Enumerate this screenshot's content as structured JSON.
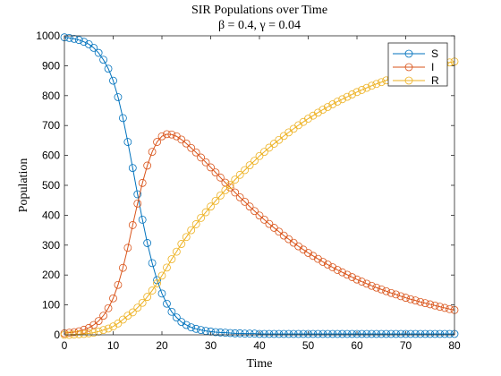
{
  "chart_data": {
    "type": "line",
    "title": "SIR Populations over Time",
    "subtitle": "β = 0.4, γ = 0.04",
    "xlabel": "Time",
    "ylabel": "Population",
    "xlim": [
      0,
      80
    ],
    "ylim": [
      0,
      1000
    ],
    "xticks": [
      0,
      10,
      20,
      30,
      40,
      50,
      60,
      70,
      80
    ],
    "yticks": [
      0,
      100,
      200,
      300,
      400,
      500,
      600,
      700,
      800,
      900,
      1000
    ],
    "grid": false,
    "legend_position": "top-right",
    "marker": "circle",
    "x": [
      0,
      1,
      2,
      3,
      4,
      5,
      6,
      7,
      8,
      9,
      10,
      11,
      12,
      13,
      14,
      15,
      16,
      17,
      18,
      19,
      20,
      21,
      22,
      23,
      24,
      25,
      26,
      27,
      28,
      29,
      30,
      31,
      32,
      33,
      34,
      35,
      36,
      37,
      38,
      39,
      40,
      41,
      42,
      43,
      44,
      45,
      46,
      47,
      48,
      49,
      50,
      51,
      52,
      53,
      54,
      55,
      56,
      57,
      58,
      59,
      60,
      61,
      62,
      63,
      64,
      65,
      66,
      67,
      68,
      69,
      70,
      71,
      72,
      73,
      74,
      75,
      76,
      77,
      78,
      79,
      80
    ],
    "series": [
      {
        "name": "S",
        "color": "#0072BD",
        "values": [
          995,
          993,
          990,
          986,
          980,
          972,
          960,
          943,
          920,
          890,
          850,
          795,
          725,
          645,
          558,
          470,
          385,
          307,
          240,
          183,
          138,
          104,
          77,
          58,
          43,
          33,
          25,
          20,
          16,
          13,
          11,
          9,
          8,
          7,
          6,
          5,
          5,
          4,
          4,
          4,
          3,
          3,
          3,
          3,
          3,
          3,
          3,
          3,
          3,
          3,
          3,
          3,
          3,
          3,
          3,
          3,
          3,
          3,
          3,
          3,
          3,
          3,
          3,
          3,
          3,
          3,
          3,
          3,
          3,
          3,
          3,
          3,
          3,
          3,
          3,
          3,
          3,
          3,
          3,
          3,
          3
        ]
      },
      {
        "name": "I",
        "color": "#D95319",
        "values": [
          5,
          7,
          9,
          12,
          17,
          23,
          33,
          46,
          64,
          89,
          122,
          167,
          224,
          291,
          367,
          439,
          508,
          566,
          612,
          645,
          664,
          671,
          670,
          664,
          653,
          640,
          625,
          610,
          593,
          577,
          560,
          543,
          526,
          509,
          493,
          476,
          460,
          445,
          429,
          414,
          399,
          385,
          371,
          358,
          345,
          332,
          320,
          308,
          296,
          285,
          274,
          264,
          254,
          244,
          235,
          226,
          217,
          209,
          201,
          193,
          185,
          178,
          171,
          164,
          158,
          152,
          146,
          140,
          135,
          129,
          124,
          119,
          115,
          110,
          106,
          102,
          98,
          94,
          90,
          86,
          83
        ]
      },
      {
        "name": "R",
        "color": "#EDB120",
        "values": [
          0,
          0,
          1,
          2,
          3,
          5,
          7,
          11,
          16,
          21,
          28,
          38,
          51,
          64,
          75,
          91,
          107,
          127,
          148,
          172,
          198,
          225,
          253,
          278,
          304,
          327,
          350,
          370,
          391,
          410,
          429,
          448,
          466,
          484,
          501,
          519,
          535,
          551,
          567,
          582,
          598,
          612,
          626,
          639,
          652,
          665,
          677,
          689,
          701,
          712,
          723,
          733,
          743,
          753,
          762,
          771,
          780,
          788,
          796,
          804,
          812,
          819,
          826,
          833,
          839,
          845,
          851,
          857,
          862,
          868,
          873,
          878,
          882,
          887,
          891,
          895,
          899,
          903,
          907,
          911,
          914
        ]
      }
    ]
  }
}
